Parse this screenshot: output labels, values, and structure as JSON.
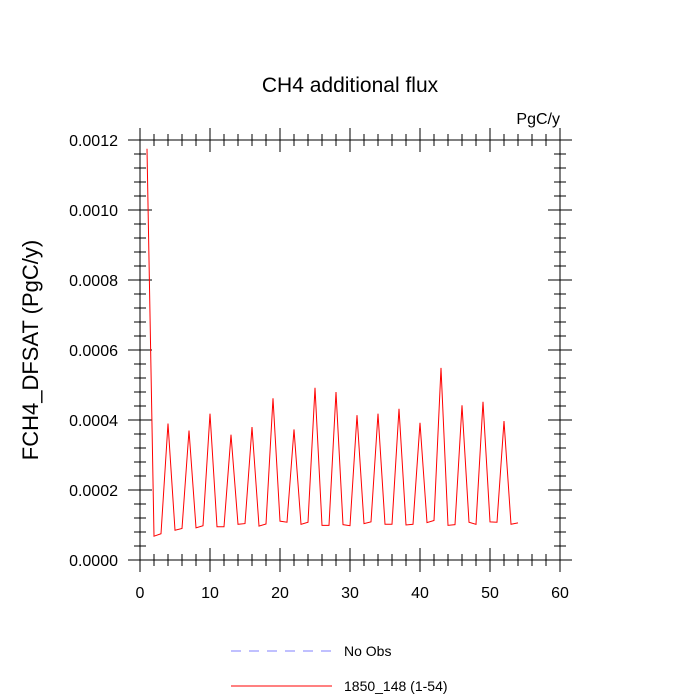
{
  "chart_data": {
    "type": "line",
    "title": "CH4 additional flux",
    "units": "PgC/y",
    "xlabel": "",
    "ylabel": "FCH4_DFSAT  (PgC/y)",
    "xlim": [
      0,
      60
    ],
    "ylim": [
      0,
      0.0012
    ],
    "xticks": [
      0,
      10,
      20,
      30,
      40,
      50,
      60
    ],
    "yticks": [
      0.0,
      0.0002,
      0.0004,
      0.0006,
      0.0008,
      0.001,
      0.0012
    ],
    "xtick_labels": [
      "0",
      "10",
      "20",
      "30",
      "40",
      "50",
      "60"
    ],
    "ytick_labels": [
      "0.0000",
      "0.0002",
      "0.0004",
      "0.0006",
      "0.0008",
      "0.0010",
      "0.0012"
    ],
    "grid": false,
    "legend_position": "bottom",
    "series": [
      {
        "name": "No Obs",
        "color": "#8080ff",
        "dash": true,
        "x": [],
        "y": []
      },
      {
        "name": "1850_148 (1-54)",
        "color": "#ff0000",
        "dash": false,
        "x": [
          1,
          2,
          3,
          4,
          5,
          6,
          7,
          8,
          9,
          10,
          11,
          12,
          13,
          14,
          15,
          16,
          17,
          18,
          19,
          20,
          21,
          22,
          23,
          24,
          25,
          26,
          27,
          28,
          29,
          30,
          31,
          32,
          33,
          34,
          35,
          36,
          37,
          38,
          39,
          40,
          41,
          42,
          43,
          44,
          45,
          46,
          47,
          48,
          49,
          50,
          51,
          52,
          53,
          54
        ],
        "y": [
          0.001175,
          6.8e-05,
          7.5e-05,
          0.00039,
          8.5e-05,
          9e-05,
          0.00037,
          9.2e-05,
          9.8e-05,
          0.000418,
          9.5e-05,
          9.5e-05,
          0.000358,
          0.000102,
          0.000104,
          0.00038,
          9.7e-05,
          0.000103,
          0.000462,
          0.000111,
          0.000108,
          0.000373,
          0.000102,
          0.000108,
          0.000492,
          9.9e-05,
          9.9e-05,
          0.00048,
          0.000101,
          9.8e-05,
          0.000414,
          0.000104,
          0.000109,
          0.000418,
          0.000102,
          0.000102,
          0.000432,
          0.0001,
          0.000102,
          0.000392,
          0.000107,
          0.000113,
          0.000549,
          9.9e-05,
          0.000101,
          0.000442,
          0.000108,
          0.000102,
          0.000452,
          0.000109,
          0.000108,
          0.000397,
          0.000102,
          0.000106
        ]
      }
    ]
  }
}
